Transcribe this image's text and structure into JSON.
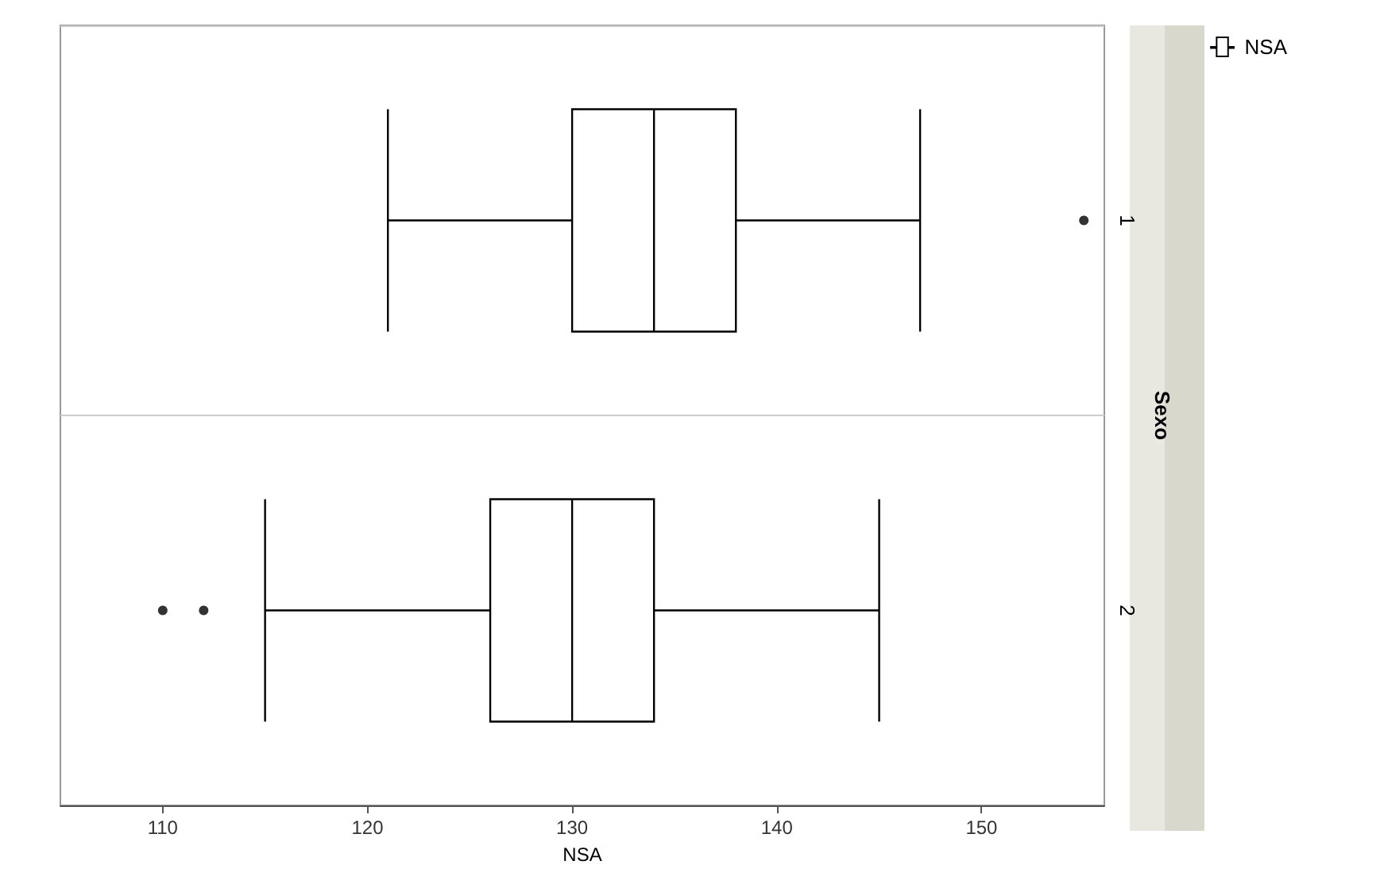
{
  "chart_data": {
    "type": "box",
    "orientation": "horizontal",
    "categories": [
      "1",
      "2"
    ],
    "series": [
      {
        "name": "NSA",
        "color": "#000000",
        "boxes": [
          {
            "low": 121,
            "q1": 130,
            "median": 134,
            "q3": 138,
            "high": 147,
            "outliers": [
              155
            ]
          },
          {
            "low": 115,
            "q1": 126,
            "median": 130,
            "q3": 134,
            "high": 145,
            "outliers": [
              110,
              112
            ]
          }
        ]
      }
    ],
    "xlabel": "NSA",
    "ylabel": "Sexo",
    "xlim": [
      105,
      156
    ],
    "xticks": [
      110,
      120,
      130,
      140,
      150
    ],
    "legend": "top right",
    "grid": false
  }
}
